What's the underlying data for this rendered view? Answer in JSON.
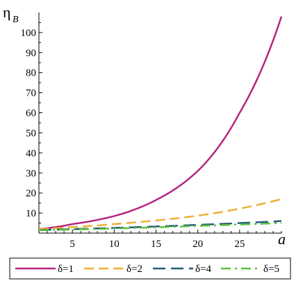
{
  "chart_data": {
    "type": "line",
    "ylabel": "η",
    "ylabel_subscript": "B",
    "xlabel": "a",
    "xlim": [
      1,
      30
    ],
    "ylim": [
      0,
      110
    ],
    "xticks": [
      5,
      10,
      15,
      20,
      25
    ],
    "yticks": [
      10,
      20,
      30,
      40,
      50,
      60,
      70,
      80,
      90,
      100
    ],
    "grid": false,
    "legend_position": "bottom",
    "series": [
      {
        "name": "δ=1",
        "color": "#b5257e",
        "dash": "solid",
        "x": [
          1,
          5,
          10,
          15,
          20,
          25,
          30
        ],
        "y": [
          2.0,
          4.5,
          8.5,
          16.5,
          31,
          60,
          108
        ]
      },
      {
        "name": "δ=2",
        "color": "#ebb033",
        "dash": "dash",
        "x": [
          1,
          5,
          10,
          15,
          20,
          25,
          30
        ],
        "y": [
          2.0,
          3.0,
          4.5,
          6.3,
          8.7,
          12.2,
          17.0
        ]
      },
      {
        "name": "δ=4",
        "color": "#1f5d7a",
        "dash": "longdash",
        "x": [
          1,
          5,
          10,
          15,
          20,
          25,
          30
        ],
        "y": [
          1.5,
          2.0,
          2.6,
          3.3,
          4.1,
          5.0,
          6.0
        ]
      },
      {
        "name": "δ=5",
        "color": "#5cc03c",
        "dash": "dashdot",
        "x": [
          1,
          5,
          10,
          15,
          20,
          25,
          30
        ],
        "y": [
          1.4,
          1.8,
          2.3,
          2.9,
          3.6,
          4.3,
          5.0
        ]
      }
    ]
  }
}
